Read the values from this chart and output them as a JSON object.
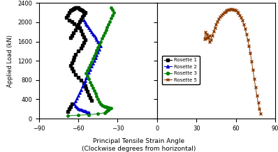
{
  "xlabel": "Principal Tensile Strain Angle",
  "xlabel2": "(Clockwise degrees from horizontal)",
  "ylabel": "Applied Load (kN)",
  "ylim": [
    0,
    2400
  ],
  "left_xlim": [
    -90,
    0
  ],
  "right_xlim": [
    0,
    90
  ],
  "left_xticks": [
    -90,
    -60,
    -30
  ],
  "right_xticks": [
    0,
    30,
    60,
    90
  ],
  "yticks": [
    0,
    400,
    800,
    1200,
    1600,
    2000,
    2400
  ],
  "rosette1_color": "#000000",
  "rosette2_color": "#0000cc",
  "rosette3_color": "#008000",
  "rosette5_color": "#8B3A00",
  "rosette1": {
    "x": [
      -66,
      -65,
      -64,
      -62,
      -61,
      -60,
      -59,
      -58,
      -57,
      -56,
      -55,
      -56,
      -57,
      -58,
      -59,
      -60,
      -61,
      -62,
      -63,
      -64,
      -65,
      -66,
      -67,
      -68,
      -69,
      -67,
      -65,
      -63,
      -61,
      -59,
      -58,
      -57,
      -56,
      -55,
      -56,
      -57,
      -58,
      -60,
      -62,
      -63,
      -64,
      -65,
      -66,
      -65,
      -64,
      -62,
      -60,
      -58,
      -56,
      -55,
      -54,
      -53,
      -52,
      -51,
      -50
    ],
    "y": [
      1680,
      1720,
      1780,
      1840,
      1900,
      1960,
      2010,
      2060,
      2110,
      2160,
      2200,
      2220,
      2240,
      2260,
      2280,
      2300,
      2310,
      2300,
      2290,
      2280,
      2260,
      2240,
      2200,
      2150,
      2100,
      2050,
      2010,
      1970,
      1930,
      1880,
      1820,
      1760,
      1700,
      1640,
      1580,
      1520,
      1460,
      1400,
      1340,
      1280,
      1220,
      1160,
      1100,
      1040,
      980,
      920,
      860,
      800,
      740,
      680,
      620,
      560,
      500,
      440,
      380
    ]
  },
  "rosette1_low": {
    "x": [
      -65,
      -66,
      -67,
      -68
    ],
    "y": [
      300,
      250,
      200,
      150
    ]
  },
  "rosette2": {
    "x": [
      -56,
      -55,
      -54,
      -53,
      -52,
      -51,
      -50,
      -49,
      -48,
      -47,
      -46,
      -45,
      -44,
      -43,
      -44,
      -45,
      -46,
      -47,
      -48,
      -49,
      -50,
      -51,
      -52,
      -53,
      -54,
      -55,
      -56,
      -57,
      -58,
      -59,
      -60,
      -61,
      -62,
      -63,
      -62,
      -61,
      -60,
      -59,
      -58,
      -57,
      -56,
      -55,
      -54,
      -53,
      -52
    ],
    "y": [
      2040,
      2000,
      1960,
      1920,
      1880,
      1840,
      1800,
      1760,
      1720,
      1680,
      1640,
      1600,
      1560,
      1500,
      1440,
      1380,
      1320,
      1260,
      1200,
      1140,
      1080,
      1020,
      960,
      900,
      840,
      780,
      720,
      660,
      600,
      540,
      480,
      420,
      360,
      300,
      260,
      230,
      210,
      195,
      185,
      175,
      165,
      155,
      145,
      135,
      125
    ]
  },
  "rosette3": {
    "x": [
      -35,
      -34,
      -33,
      -34,
      -35,
      -36,
      -37,
      -38,
      -39,
      -40,
      -41,
      -42,
      -43,
      -44,
      -45,
      -46,
      -47,
      -48,
      -49,
      -50,
      -51,
      -52,
      -53,
      -54,
      -53,
      -52,
      -51,
      -50,
      -49,
      -48,
      -47,
      -46,
      -45,
      -44,
      -43,
      -42,
      -41,
      -40,
      -39,
      -38,
      -37,
      -36,
      -35,
      -36,
      -37,
      -38,
      -39,
      -40,
      -45,
      -52,
      -60,
      -68
    ],
    "y": [
      2300,
      2260,
      2200,
      2140,
      2080,
      2020,
      1960,
      1900,
      1840,
      1780,
      1720,
      1660,
      1600,
      1540,
      1480,
      1420,
      1360,
      1300,
      1240,
      1180,
      1120,
      1060,
      1000,
      940,
      880,
      820,
      760,
      700,
      640,
      580,
      520,
      460,
      400,
      350,
      310,
      280,
      260,
      250,
      240,
      235,
      230,
      225,
      220,
      200,
      180,
      160,
      140,
      120,
      100,
      80,
      70,
      60
    ]
  },
  "rosette3_top": {
    "x": [
      -33,
      -34,
      -36,
      -37,
      -34
    ],
    "y": [
      2200,
      2270,
      2300,
      2270,
      2320
    ]
  },
  "rosette3_branch": {
    "x": [
      -35,
      -38,
      -42
    ],
    "y": [
      2300,
      2280,
      1650
    ]
  },
  "rosette5": {
    "x": [
      79,
      78,
      77,
      76,
      75,
      74,
      73,
      72,
      71,
      70,
      69,
      68,
      67,
      66,
      65,
      64,
      63,
      62,
      61,
      60,
      59,
      58,
      57,
      56,
      55,
      54,
      53,
      52,
      51,
      50,
      49,
      48,
      47,
      46,
      45,
      44,
      43,
      42,
      41,
      40,
      39,
      38,
      37,
      36,
      37,
      38,
      39,
      40
    ],
    "y": [
      100,
      200,
      330,
      480,
      650,
      830,
      1010,
      1190,
      1360,
      1510,
      1640,
      1760,
      1870,
      1960,
      2040,
      2100,
      2150,
      2190,
      2220,
      2240,
      2255,
      2265,
      2270,
      2270,
      2265,
      2255,
      2240,
      2220,
      2200,
      2175,
      2145,
      2110,
      2070,
      2020,
      1960,
      1890,
      1810,
      1720,
      1640,
      1590,
      1680,
      1750,
      1800,
      1650,
      1670,
      1680,
      1700,
      1720
    ]
  },
  "legend_items": [
    "Rosette 1",
    "Rosette 2",
    "Rosette 3",
    "Rosette 5"
  ],
  "marker1": "s",
  "marker2": "^",
  "marker3": "o",
  "marker5": "x"
}
